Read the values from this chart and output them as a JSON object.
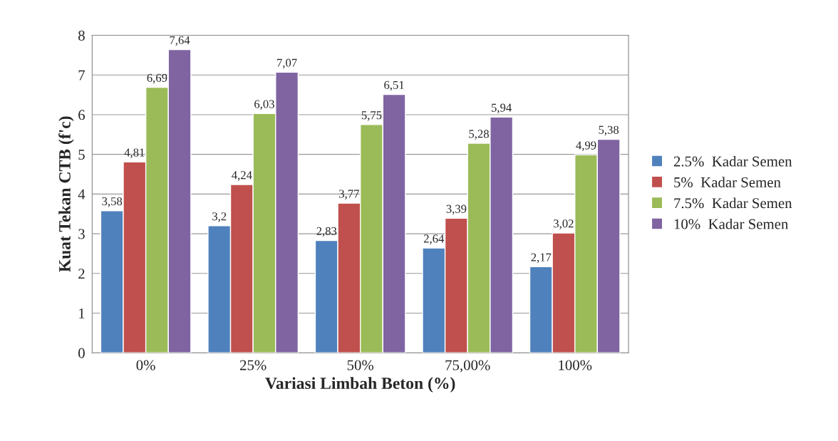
{
  "chart_data": {
    "type": "bar",
    "xlabel": "Variasi Limbah Beton (%)",
    "ylabel": "Kuat Tekan CTB (f'c)",
    "categories": [
      "0%",
      "25%",
      "50%",
      "75,00%",
      "100%"
    ],
    "series": [
      {
        "name": "2.5%  Kadar Semen",
        "color": "#4f81bd",
        "values": [
          3.58,
          3.2,
          2.83,
          2.64,
          2.17
        ],
        "value_labels": [
          "3,58",
          "3,2",
          "2,83",
          "2,64",
          "2,17"
        ]
      },
      {
        "name": "5%  Kadar Semen",
        "color": "#c0504d",
        "values": [
          4.81,
          4.24,
          3.77,
          3.39,
          3.02
        ],
        "value_labels": [
          "4,81",
          "4,24",
          "3,77",
          "3,39",
          "3,02"
        ]
      },
      {
        "name": "7.5%  Kadar Semen",
        "color": "#9bbb59",
        "values": [
          6.69,
          6.03,
          5.75,
          5.28,
          4.99
        ],
        "value_labels": [
          "6,69",
          "6,03",
          "5,75",
          "5,28",
          "4,99"
        ]
      },
      {
        "name": "10%  Kadar Semen",
        "color": "#8064a2",
        "values": [
          7.64,
          7.07,
          6.51,
          5.94,
          5.38
        ],
        "value_labels": [
          "7,64",
          "7,07",
          "6,51",
          "5,94",
          "5,38"
        ]
      }
    ],
    "ylim": [
      0,
      8
    ],
    "yticks": [
      0,
      1,
      2,
      3,
      4,
      5,
      6,
      7,
      8
    ],
    "grid": "y",
    "legend": "right"
  }
}
